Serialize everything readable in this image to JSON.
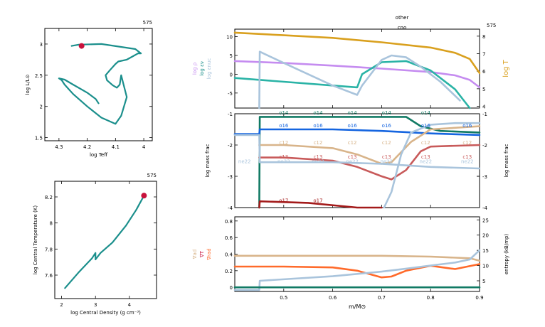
{
  "colors": {
    "teal": "#1b8f8c",
    "crimson": "#c8123c",
    "gold": "#d9a01e",
    "violet": "#c58cf0",
    "lightblue": "#a9c4dc",
    "sea": "#2ab3a6",
    "blue": "#1565e0",
    "darkgreen": "#117a64",
    "tan": "#d8b48a",
    "rose": "#c85a5a",
    "darkred": "#a31a1a",
    "orange": "#ff6a2a"
  },
  "charts": [
    {
      "type": "line",
      "model": "575",
      "xlabel": "log Teff",
      "ylabel": "log L/L⊙",
      "xlim": [
        4.35,
        3.97
      ],
      "ylim": [
        1.45,
        3.25
      ],
      "xticks": [
        4.3,
        4.2,
        4.1,
        4.0
      ],
      "xtick_labels": [
        "4.3",
        "4.2",
        "4.1",
        "4"
      ],
      "yticks": [
        1.5,
        2.0,
        2.5,
        3.0
      ],
      "ytick_labels": [
        "1.5",
        "2",
        "2.5",
        "3"
      ],
      "series": [
        {
          "x": [
            4.255,
            4.23,
            4.15,
            4.03,
            4.01,
            4.02,
            4.04,
            4.06,
            4.09,
            4.1,
            4.12,
            4.135,
            4.13,
            4.11,
            4.095,
            4.085,
            4.08,
            4.06,
            4.08,
            4.1,
            4.15,
            4.2,
            4.25,
            4.28,
            4.29,
            4.3,
            4.28,
            4.25,
            4.2,
            4.17,
            4.16
          ],
          "y": [
            2.97,
            2.99,
            3.0,
            2.92,
            2.85,
            2.85,
            2.8,
            2.75,
            2.72,
            2.68,
            2.58,
            2.5,
            2.42,
            2.34,
            2.3,
            2.35,
            2.5,
            2.15,
            1.85,
            1.72,
            1.82,
            2.0,
            2.2,
            2.35,
            2.42,
            2.45,
            2.43,
            2.35,
            2.22,
            2.12,
            2.05
          ]
        }
      ],
      "marker": {
        "x": 4.22,
        "y": 2.97
      }
    },
    {
      "type": "line",
      "model": "575",
      "xlabel": "log Central Density (g cm⁻³)",
      "ylabel": "log Central Temperature (K)",
      "xlim": [
        1.8,
        4.8
      ],
      "ylim": [
        7.42,
        8.32
      ],
      "xticks": [
        2,
        3,
        4
      ],
      "xtick_labels": [
        "2",
        "3",
        "4"
      ],
      "yticks": [
        7.6,
        7.8,
        8.0,
        8.2
      ],
      "ytick_labels": [
        "7.6",
        "7.8",
        "8",
        "8.2"
      ],
      "series": [
        {
          "x": [
            2.1,
            2.5,
            2.9,
            3.0,
            3.0,
            3.15,
            3.5,
            3.9,
            4.2,
            4.43
          ],
          "y": [
            7.5,
            7.62,
            7.73,
            7.77,
            7.72,
            7.77,
            7.85,
            7.98,
            8.1,
            8.21
          ]
        }
      ],
      "marker": {
        "x": 4.43,
        "y": 8.21
      }
    },
    {
      "type": "line",
      "model": "575",
      "top_labels": [
        "other",
        "cno"
      ],
      "xlabel": "m/M⊙",
      "xlim": [
        0.4,
        0.9
      ],
      "xticks": [
        0.5,
        0.6,
        0.7,
        0.8,
        0.9
      ],
      "xtick_labels": [
        "0.5",
        "0.6",
        "0.7",
        "0.8",
        "0.9"
      ],
      "panels": [
        {
          "name": "structure",
          "ylim": [
            -9,
            12
          ],
          "yticks": [
            -5,
            0,
            5,
            10
          ],
          "ytick_labels": [
            "-5",
            "0",
            "5",
            "10"
          ],
          "y2lim": [
            3.9,
            8.4
          ],
          "y2ticks": [
            4,
            5,
            6,
            7,
            8
          ],
          "y2tick_labels": [
            "4",
            "5",
            "6",
            "7",
            "8"
          ],
          "y2label": "log T",
          "ylabels": [
            {
              "text": "log ρ",
              "color": "violet"
            },
            {
              "text": "log εν",
              "color": "teal"
            },
            {
              "text": "log εnuc",
              "color": "lightblue"
            }
          ],
          "series": [
            {
              "name": "log T",
              "axis": "y2",
              "color": "gold",
              "x": [
                0.4,
                0.5,
                0.6,
                0.7,
                0.8,
                0.85,
                0.88,
                0.9
              ],
              "y": [
                8.2,
                8.05,
                7.9,
                7.65,
                7.35,
                7.05,
                6.7,
                5.9
              ]
            },
            {
              "name": "log ρ",
              "axis": "y1",
              "color": "violet",
              "x": [
                0.4,
                0.5,
                0.6,
                0.7,
                0.8,
                0.85,
                0.88,
                0.9
              ],
              "y": [
                3.5,
                3.0,
                2.3,
                1.5,
                0.6,
                -0.3,
                -1.5,
                -3.5
              ]
            },
            {
              "name": "log εν",
              "axis": "y1",
              "color": "sea",
              "x": [
                0.4,
                0.5,
                0.6,
                0.65,
                0.66,
                0.7,
                0.75,
                0.8,
                0.85,
                0.88
              ],
              "y": [
                -1.0,
                -2.0,
                -3.0,
                -3.5,
                0.0,
                3.2,
                3.5,
                1.0,
                -4.0,
                -9.0
              ]
            },
            {
              "name": "log εnuc",
              "axis": "y1",
              "color": "lightblue",
              "x": [
                0.45,
                0.451,
                0.5,
                0.55,
                0.6,
                0.65,
                0.66,
                0.7,
                0.72,
                0.75,
                0.78,
                0.82,
                0.86
              ],
              "y": [
                -9.0,
                6.0,
                3.0,
                0.0,
                -3.0,
                -5.5,
                -3.0,
                3.8,
                5.0,
                4.5,
                2.0,
                -2.0,
                -7.0
              ]
            }
          ]
        },
        {
          "name": "abundance",
          "ylabel": "log mass frac",
          "y2label": "log mass frac",
          "ylim": [
            -4,
            -1
          ],
          "yticks": [
            -4,
            -3,
            -2,
            -1
          ],
          "ytick_labels": [
            "-4",
            "-3",
            "-2",
            "-1"
          ],
          "series": [
            {
              "name": "o14",
              "color": "darkgreen",
              "x": [
                0.45,
                0.451,
                0.7,
                0.75,
                0.78,
                0.82,
                0.9
              ],
              "y": [
                -4.0,
                -1.1,
                -1.1,
                -1.1,
                -1.4,
                -1.55,
                -1.6
              ]
            },
            {
              "name": "o16",
              "color": "blue",
              "x": [
                0.4,
                0.45,
                0.451,
                0.6,
                0.7,
                0.8,
                0.9
              ],
              "y": [
                -1.65,
                -1.65,
                -1.5,
                -1.5,
                -1.55,
                -1.63,
                -1.68
              ]
            },
            {
              "name": "c12",
              "color": "tan",
              "x": [
                0.45,
                0.5,
                0.6,
                0.65,
                0.7,
                0.72,
                0.76,
                0.8,
                0.9
              ],
              "y": [
                -2.0,
                -2.0,
                -2.1,
                -2.3,
                -2.6,
                -2.55,
                -1.9,
                -1.5,
                -1.4
              ]
            },
            {
              "name": "c13",
              "color": "rose",
              "x": [
                0.45,
                0.5,
                0.6,
                0.65,
                0.7,
                0.72,
                0.75,
                0.78,
                0.8,
                0.9
              ],
              "y": [
                -2.4,
                -2.4,
                -2.5,
                -2.7,
                -3.0,
                -3.1,
                -2.8,
                -2.2,
                -2.05,
                -2.0
              ]
            },
            {
              "name": "ne22",
              "color": "lightblue",
              "x": [
                0.4,
                0.45,
                0.451,
                0.6,
                0.7,
                0.8,
                0.9
              ],
              "y": [
                -1.68,
                -1.68,
                -2.55,
                -2.55,
                -2.6,
                -2.7,
                -2.75
              ]
            },
            {
              "name": "n14",
              "color": "lightblue",
              "x": [
                0.705,
                0.72,
                0.74,
                0.76,
                0.8,
                0.85,
                0.9
              ],
              "y": [
                -4.0,
                -3.5,
                -2.3,
                -1.6,
                -1.35,
                -1.3,
                -1.3
              ]
            },
            {
              "name": "o17",
              "color": "darkred",
              "x": [
                0.45,
                0.451,
                0.55,
                0.65,
                0.7
              ],
              "y": [
                -4.0,
                -3.8,
                -3.85,
                -4.0,
                -4.0
              ]
            }
          ],
          "line_labels": [
            {
              "text": "o14",
              "color": "darkgreen",
              "x": [
                0.5,
                0.57,
                0.64,
                0.71,
                0.79
              ],
              "y": -1.05
            },
            {
              "text": "o16",
              "color": "blue",
              "x": [
                0.5,
                0.57,
                0.64,
                0.71,
                0.79,
                0.875
              ],
              "y": -1.45
            },
            {
              "text": "c12",
              "color": "tan",
              "x": [
                0.5,
                0.57,
                0.64,
                0.71,
                0.79,
                0.875
              ],
              "y": -2.0
            },
            {
              "text": "c13",
              "color": "rose",
              "x": [
                0.5,
                0.57,
                0.64,
                0.71,
                0.79,
                0.875
              ],
              "y": -2.45
            },
            {
              "text": "ne22",
              "color": "lightblue",
              "x": [
                0.42,
                0.5,
                0.57,
                0.64,
                0.71,
                0.79,
                0.875
              ],
              "y": -2.6
            },
            {
              "text": "o17",
              "color": "darkred",
              "x": [
                0.5,
                0.57
              ],
              "y": -3.85
            }
          ]
        },
        {
          "name": "gradients",
          "ylim": [
            -0.05,
            0.85
          ],
          "yticks": [
            0,
            0.2,
            0.4,
            0.6,
            0.8
          ],
          "ytick_labels": [
            "0",
            "0.2",
            "0.4",
            "0.6",
            "0.8"
          ],
          "y2lim": [
            1.5,
            26
          ],
          "y2ticks": [
            5,
            10,
            15,
            20,
            25
          ],
          "y2tick_labels": [
            "5",
            "10",
            "15",
            "20",
            "25"
          ],
          "y2label": "entropy (kB/mp)",
          "ylabels": [
            {
              "text": "∇ad",
              "color": "tan"
            },
            {
              "text": "∇T",
              "color": "crimson"
            },
            {
              "text": "∇rad",
              "color": "orange"
            }
          ],
          "series": [
            {
              "name": "∇ad",
              "axis": "y1",
              "color": "tan",
              "x": [
                0.4,
                0.5,
                0.6,
                0.7,
                0.8,
                0.88,
                0.9
              ],
              "y": [
                0.38,
                0.38,
                0.38,
                0.38,
                0.37,
                0.35,
                0.32
              ]
            },
            {
              "name": "∇rad",
              "axis": "y1",
              "color": "orange",
              "x": [
                0.4,
                0.5,
                0.6,
                0.65,
                0.7,
                0.72,
                0.75,
                0.8,
                0.85,
                0.9
              ],
              "y": [
                0.25,
                0.25,
                0.24,
                0.2,
                0.12,
                0.13,
                0.2,
                0.26,
                0.22,
                0.28
              ]
            },
            {
              "name": "entropy",
              "axis": "y2",
              "color": "lightblue",
              "x": [
                0.4,
                0.45,
                0.451,
                0.6,
                0.7,
                0.75,
                0.8,
                0.85,
                0.88,
                0.9
              ],
              "y": [
                2.0,
                2.0,
                5.0,
                6.5,
                8.0,
                9.0,
                10.0,
                11.0,
                12.0,
                15.0
              ]
            },
            {
              "name": "∇T",
              "axis": "y1",
              "color": "darkgreen",
              "x": [
                0.4,
                0.9
              ],
              "y": [
                0.0,
                0.0
              ]
            }
          ]
        }
      ]
    }
  ]
}
